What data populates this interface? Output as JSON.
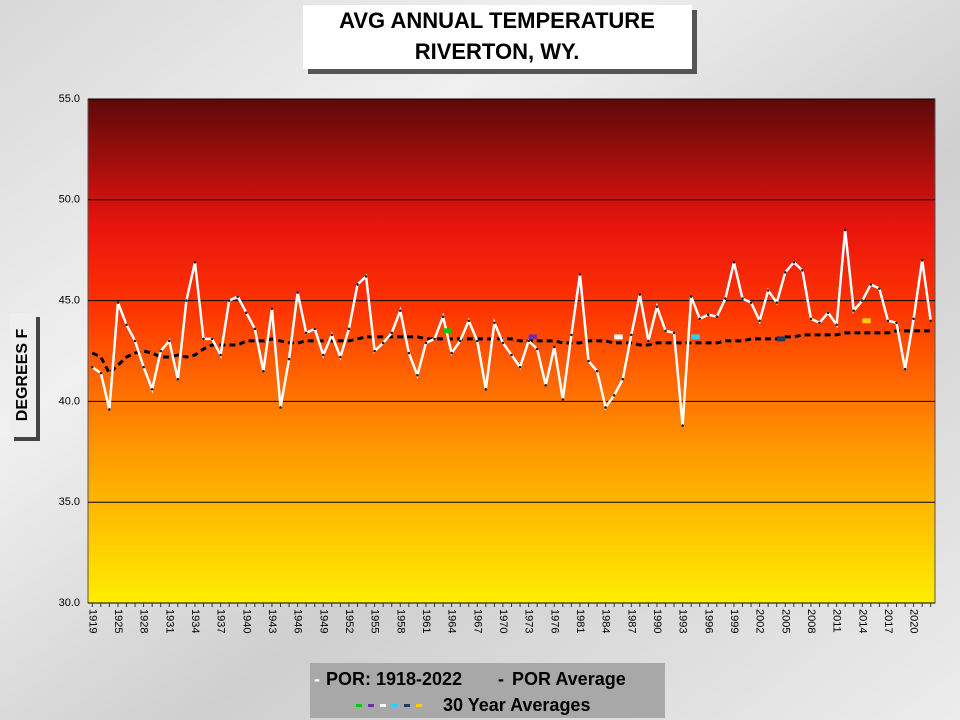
{
  "chart_data": {
    "type": "line",
    "title": [
      "AVG ANNUAL TEMPERATURE",
      "RIVERTON, WY."
    ],
    "ylabel": "DEGREES F",
    "categories": [
      "1919",
      null,
      null,
      "1925",
      null,
      null,
      "1928",
      null,
      null,
      "1931",
      null,
      null,
      "1934",
      null,
      null,
      "1937",
      null,
      null,
      "1940",
      null,
      null,
      "1943",
      null,
      null,
      "1946",
      null,
      null,
      "1949",
      null,
      null,
      "1952",
      null,
      null,
      "1955",
      null,
      null,
      "1958",
      null,
      null,
      "1961",
      null,
      null,
      "1964",
      null,
      null,
      "1967",
      null,
      null,
      "1970",
      null,
      null,
      "1973",
      null,
      null,
      "1976",
      null,
      null,
      "1981",
      null,
      null,
      "1984",
      null,
      null,
      "1987",
      null,
      null,
      "1990",
      null,
      null,
      "1993",
      null,
      null,
      "1996",
      null,
      null,
      "1999",
      null,
      null,
      "2002",
      null,
      null,
      "2005",
      null,
      null,
      "2008",
      null,
      null,
      "2011",
      null,
      null,
      "2014",
      null,
      null,
      "2017",
      null,
      null,
      "2020",
      null,
      null
    ],
    "series": [
      {
        "name": "POR: 1918-2022",
        "color": "#ffffff",
        "values": [
          41.7,
          41.4,
          39.6,
          44.9,
          43.8,
          43.0,
          41.7,
          40.6,
          42.5,
          43.0,
          41.1,
          45.0,
          46.9,
          43.1,
          43.1,
          42.3,
          45.0,
          45.2,
          44.4,
          43.6,
          41.5,
          44.6,
          39.7,
          42.1,
          45.4,
          43.4,
          43.6,
          42.3,
          43.3,
          42.2,
          43.6,
          45.8,
          46.2,
          42.5,
          42.9,
          43.4,
          44.5,
          42.4,
          41.3,
          42.9,
          43.1,
          44.2,
          42.4,
          43.0,
          44.0,
          43.0,
          40.6,
          43.9,
          42.9,
          42.3,
          41.7,
          43.0,
          42.6,
          40.8,
          42.7,
          40.1,
          43.3,
          46.3,
          42.0,
          41.5,
          39.7,
          40.3,
          41.1,
          43.3,
          45.3,
          43.0,
          44.7,
          43.5,
          43.4,
          38.8,
          45.2,
          44.1,
          44.3,
          44.2,
          45.1,
          46.9,
          45.1,
          44.9,
          44.0,
          45.5,
          44.9,
          46.4,
          46.9,
          46.5,
          44.1,
          43.9,
          44.4,
          43.8,
          48.5,
          44.5,
          45.0,
          45.8,
          45.6,
          44.0,
          43.9,
          41.6,
          44.1,
          47.0,
          44.0
        ]
      },
      {
        "name": "POR Average",
        "color": "#000000",
        "values": [
          42.4,
          42.2,
          41.4,
          41.8,
          42.2,
          42.4,
          42.5,
          42.4,
          42.2,
          42.2,
          42.3,
          42.2,
          42.3,
          42.6,
          42.8,
          42.8,
          42.8,
          42.8,
          43.0,
          43.0,
          43.0,
          43.1,
          43.0,
          42.9,
          42.9,
          43.0,
          43.0,
          43.0,
          43.0,
          43.0,
          43.0,
          43.1,
          43.2,
          43.2,
          43.2,
          43.2,
          43.2,
          43.2,
          43.2,
          43.1,
          43.1,
          43.1,
          43.1,
          43.1,
          43.1,
          43.1,
          43.1,
          43.1,
          43.1,
          43.1,
          43.0,
          43.0,
          43.0,
          43.0,
          43.0,
          42.9,
          42.9,
          42.9,
          43.0,
          43.0,
          43.0,
          42.9,
          42.9,
          42.9,
          42.8,
          42.8,
          42.9,
          42.9,
          42.9,
          42.9,
          42.9,
          42.9,
          42.9,
          42.9,
          43.0,
          43.0,
          43.0,
          43.1,
          43.1,
          43.1,
          43.1,
          43.2,
          43.2,
          43.3,
          43.3,
          43.3,
          43.3,
          43.3,
          43.4,
          43.4,
          43.4,
          43.4,
          43.4,
          43.4,
          43.5,
          43.5,
          43.5,
          43.5,
          43.5
        ]
      },
      {
        "name": "30 Year Averages",
        "segment_colors": [
          "#00cc00",
          "#7030a0",
          "#ffffff",
          "#33ccff",
          "#1f3864",
          "#ffcc00"
        ],
        "values": [
          null,
          null,
          null,
          null,
          null,
          null,
          null,
          null,
          null,
          null,
          null,
          null,
          null,
          null,
          null,
          null,
          null,
          null,
          null,
          null,
          null,
          null,
          null,
          null,
          null,
          null,
          null,
          null,
          null,
          null,
          null,
          null,
          null,
          null,
          null,
          null,
          null,
          null,
          null,
          null,
          null,
          43.5,
          43.5,
          null,
          null,
          null,
          null,
          null,
          null,
          null,
          null,
          43.2,
          43.2,
          null,
          null,
          null,
          null,
          null,
          null,
          null,
          null,
          43.2,
          43.2,
          null,
          null,
          null,
          null,
          null,
          null,
          null,
          43.2,
          43.2,
          null,
          null,
          null,
          null,
          null,
          null,
          null,
          null,
          43.1,
          43.1,
          null,
          null,
          null,
          null,
          null,
          null,
          null,
          null,
          44.0,
          44.0,
          null,
          null,
          null,
          null,
          null,
          null,
          null
        ]
      }
    ],
    "ylim": [
      30,
      55
    ],
    "yticks": [
      {
        "value": 30,
        "label": "30.0"
      },
      {
        "value": 35,
        "label": "35.0"
      },
      {
        "value": 40,
        "label": "40.0"
      },
      {
        "value": 45,
        "label": "45.0"
      },
      {
        "value": 50,
        "label": "50.0"
      },
      {
        "value": 55,
        "label": "55.0"
      }
    ],
    "grid": true
  }
}
